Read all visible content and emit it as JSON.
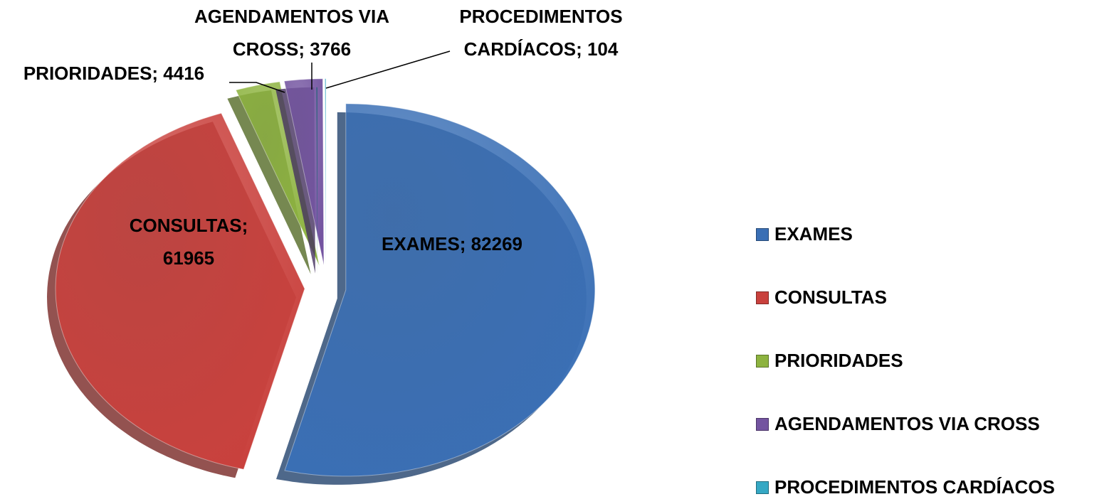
{
  "chart_data": {
    "type": "pie",
    "categories": [
      "EXAMES",
      "CONSULTAS",
      "PRIORIDADES",
      "AGENDAMENTOS VIA CROSS",
      "PROCEDIMENTOS CARDÍACOS"
    ],
    "values": [
      82269,
      61965,
      4416,
      3766,
      104
    ],
    "value_labels": [
      "EXAMES; 82269",
      "CONSULTAS; 61965",
      "PRIORIDADES; 4416",
      "AGENDAMENTOS VIA CROSS; 3766",
      "PROCEDIMENTOS CARDÍACOS; 104"
    ],
    "colors": [
      "#3a6fb5",
      "#c9413d",
      "#8db33f",
      "#7354a0",
      "#35a8c4"
    ],
    "legend": "right"
  }
}
